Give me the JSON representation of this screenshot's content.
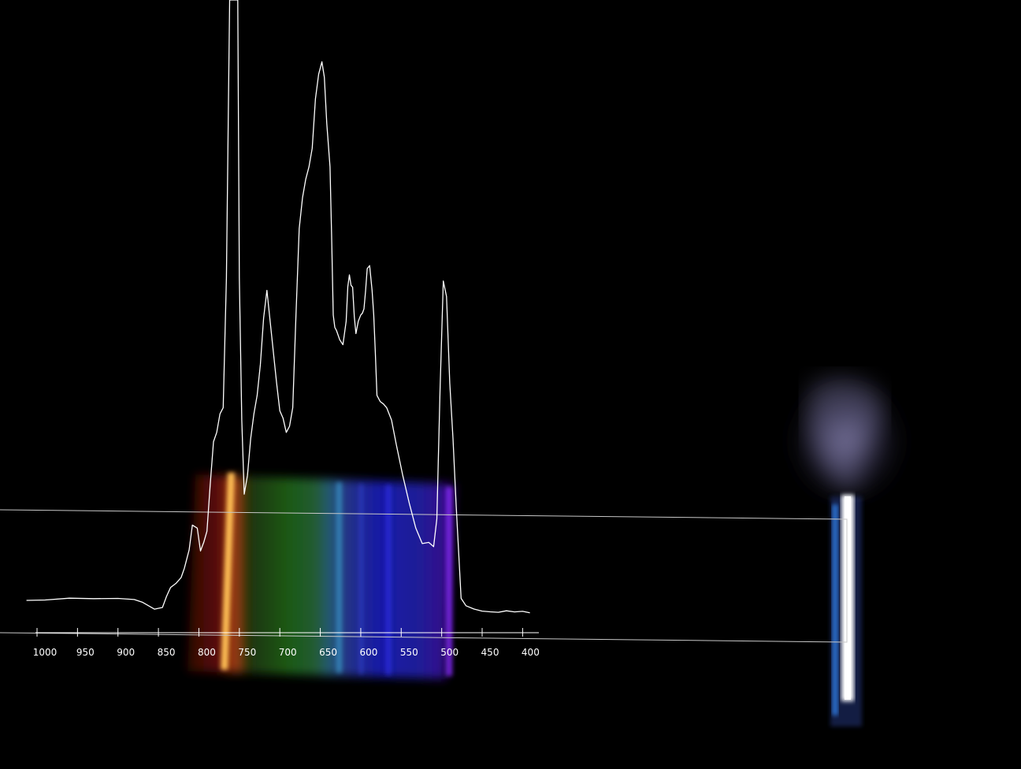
{
  "chart_data": {
    "type": "line",
    "title": "",
    "xlabel": "",
    "ylabel": "",
    "x_axis_direction": "decreasing left-to-right",
    "xlim": [
      1000,
      380
    ],
    "xticks": [
      1000,
      950,
      900,
      850,
      800,
      750,
      700,
      650,
      600,
      550,
      500,
      450,
      400
    ],
    "y_axis_shown": false,
    "ylim": [
      0,
      1
    ],
    "grid": false,
    "series": [
      {
        "line_color": "#ffffff",
        "x": [
          1013,
          990,
          960,
          930,
          900,
          880,
          870,
          855,
          845,
          840,
          835,
          828,
          822,
          818,
          812,
          808,
          802,
          798,
          794,
          790,
          786,
          782,
          778,
          774,
          770,
          766,
          762,
          758,
          754,
          752,
          750,
          747,
          744,
          740,
          736,
          732,
          728,
          724,
          720,
          716,
          712,
          708,
          704,
          700,
          696,
          692,
          688,
          684,
          680,
          676,
          672,
          668,
          664,
          660,
          656,
          652,
          650,
          648,
          645,
          642,
          638,
          636,
          634,
          632,
          630,
          626,
          622,
          618,
          616,
          614,
          612,
          610,
          608,
          606,
          603,
          600,
          598,
          596,
          594,
          592,
          589,
          586,
          584,
          582,
          580,
          576,
          572,
          568,
          562,
          556,
          548,
          540,
          532,
          524,
          516,
          510,
          506,
          502,
          498,
          494,
          490,
          486,
          482,
          476,
          470,
          460,
          450,
          440,
          430,
          420,
          410,
          400,
          391
        ],
        "y": [
          0.028,
          0.03,
          0.033,
          0.031,
          0.03,
          0.028,
          0.025,
          0.015,
          0.018,
          0.035,
          0.048,
          0.056,
          0.065,
          0.08,
          0.11,
          0.15,
          0.145,
          0.108,
          0.122,
          0.14,
          0.215,
          0.285,
          0.3,
          0.33,
          0.34,
          0.55,
          1.0,
          1.0,
          1.0,
          1.0,
          0.55,
          0.32,
          0.2,
          0.23,
          0.29,
          0.33,
          0.36,
          0.41,
          0.485,
          0.53,
          0.48,
          0.43,
          0.38,
          0.335,
          0.323,
          0.3,
          0.31,
          0.34,
          0.49,
          0.63,
          0.68,
          0.71,
          0.73,
          0.76,
          0.84,
          0.88,
          0.89,
          0.9,
          0.875,
          0.8,
          0.73,
          0.62,
          0.49,
          0.47,
          0.465,
          0.45,
          0.442,
          0.48,
          0.536,
          0.555,
          0.538,
          0.535,
          0.488,
          0.46,
          0.48,
          0.49,
          0.493,
          0.5,
          0.53,
          0.565,
          0.57,
          0.53,
          0.49,
          0.43,
          0.36,
          0.35,
          0.346,
          0.34,
          0.32,
          0.28,
          0.23,
          0.185,
          0.145,
          0.12,
          0.122,
          0.115,
          0.16,
          0.37,
          0.545,
          0.52,
          0.38,
          0.29,
          0.18,
          0.03,
          0.018,
          0.014,
          0.012,
          0.011,
          0.009,
          0.01,
          0.008,
          0.01,
          0.009
        ]
      }
    ]
  }
}
